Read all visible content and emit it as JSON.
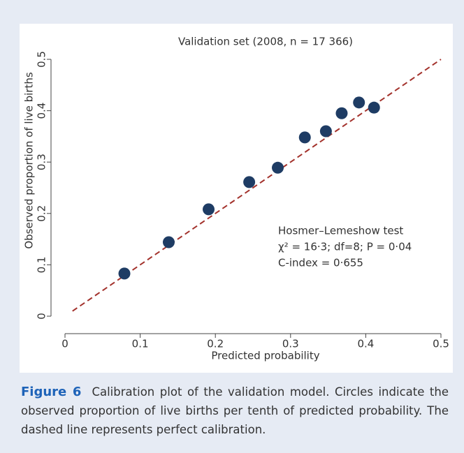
{
  "chart_data": {
    "type": "scatter",
    "title": "Validation set (2008, n = 17 366)",
    "x_label": "Predicted probability",
    "y_label": "Observed proportion of live births",
    "x": [
      0.079,
      0.138,
      0.191,
      0.245,
      0.283,
      0.319,
      0.347,
      0.368,
      0.391,
      0.411
    ],
    "series": [
      {
        "name": "Observed proportion",
        "color": "#1e3c64",
        "values": [
          0.083,
          0.144,
          0.208,
          0.261,
          0.289,
          0.348,
          0.36,
          0.395,
          0.416,
          0.406
        ]
      }
    ],
    "reference_line": {
      "x": [
        0.01,
        0.5
      ],
      "y": [
        0.01,
        0.5
      ],
      "color": "#a3322c",
      "dashed": true
    },
    "xlim": [
      0,
      0.5
    ],
    "ylim": [
      0,
      0.5
    ],
    "xticks": [
      0,
      0.1,
      0.2,
      0.3,
      0.4,
      0.5
    ],
    "yticks": [
      0,
      0.1,
      0.2,
      0.3,
      0.4,
      0.5
    ],
    "annotations": [
      "Hosmer–Lemeshow test",
      "χ² = 16·3; df=8; P = 0·04",
      "C-index = 0·655"
    ]
  },
  "caption": {
    "label": "Figure 6",
    "text": "Calibration plot of the validation model. Circles indicate the observed proportion of live births per tenth of predicted probability. The dashed line represents perfect calibration."
  }
}
